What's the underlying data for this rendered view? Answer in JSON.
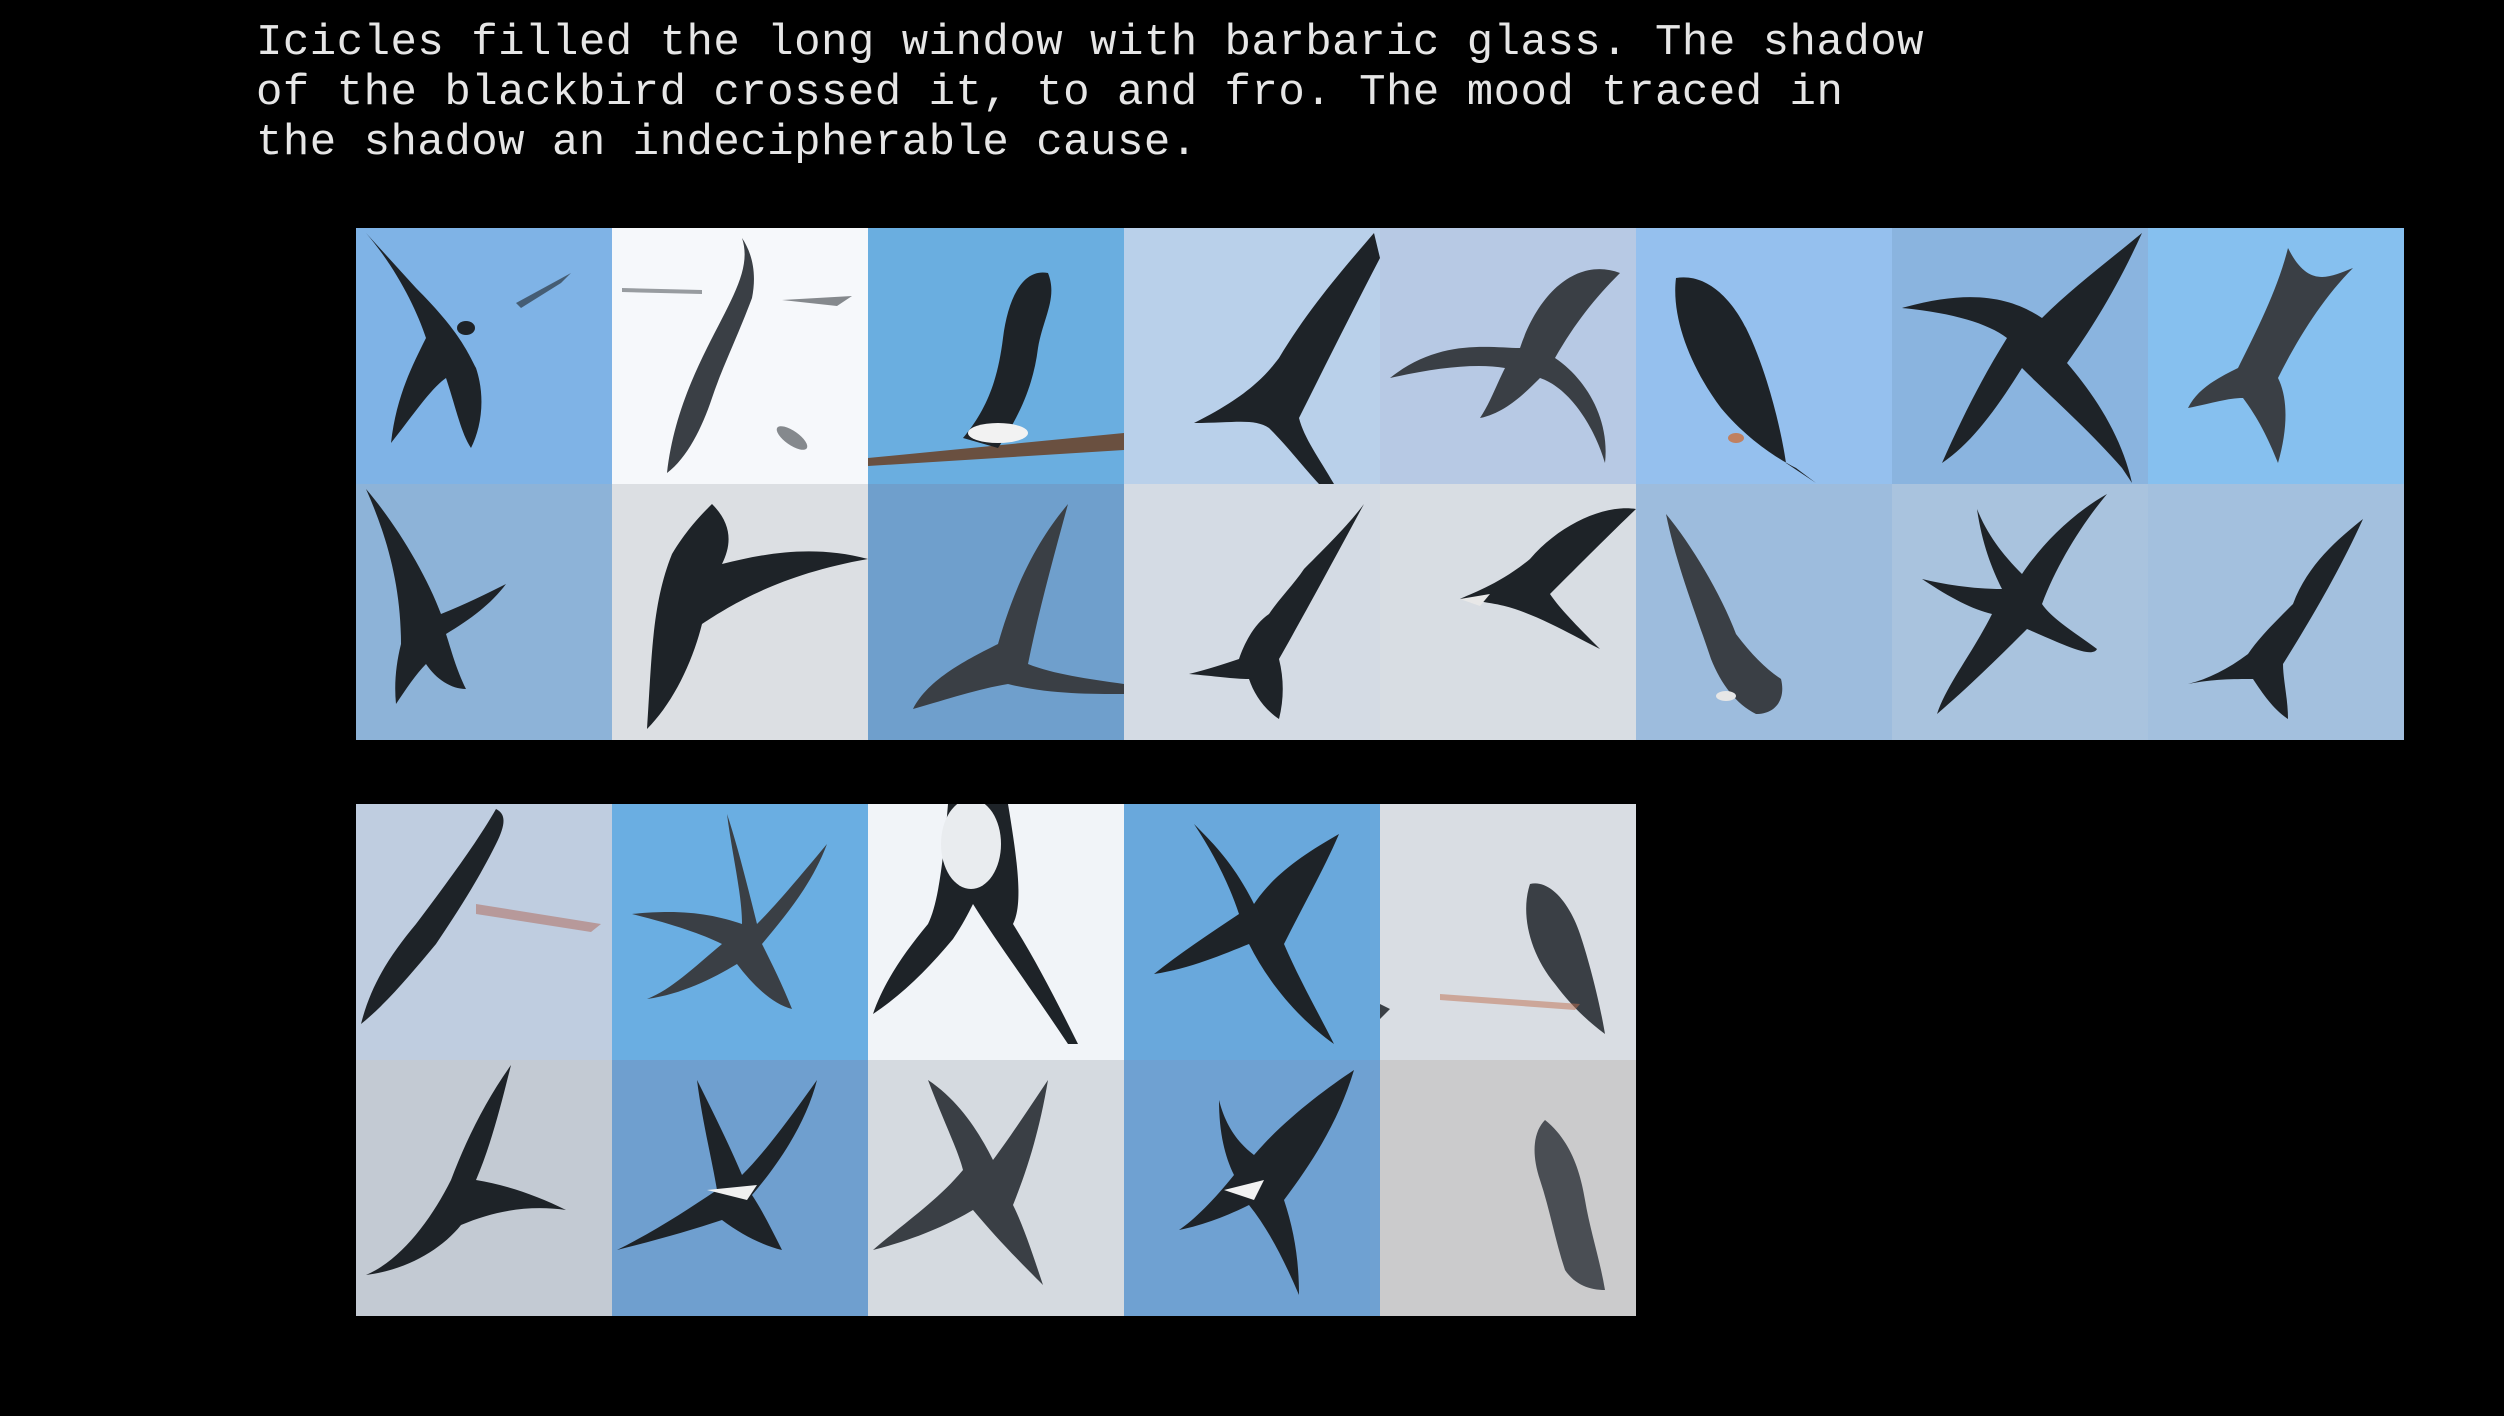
{
  "caption": {
    "lines": [
      "Icicles filled the long window with barbaric glass. The shadow",
      "of the blackbird crossed it, to and fro. The mood traced in",
      "the shadow an indecipherable cause."
    ]
  },
  "colors": {
    "background": "#000000",
    "caption_text": "#e6e6e6",
    "bird_dark": "#1e2328",
    "bird_mid": "#3a3f45"
  },
  "top_grid": {
    "tiles": [
      {
        "bg": "#7fb3e6",
        "subject": "bird-silhouette"
      },
      {
        "bg": "#f6f8fb",
        "subject": "bird-silhouette"
      },
      {
        "bg": "#6aaee0",
        "subject": "bird-on-branch"
      },
      {
        "bg": "#b9d0ea",
        "subject": "bird-silhouette"
      },
      {
        "bg": "#b7c9e4",
        "subject": "bird-silhouette"
      },
      {
        "bg": "#95c0ee",
        "subject": "bird-silhouette"
      },
      {
        "bg": "#8ab4df",
        "subject": "bird-silhouette"
      },
      {
        "bg": "#86c0ef",
        "subject": "bird-silhouette"
      },
      {
        "bg": "#8db3d8",
        "subject": "tern-in-flight"
      },
      {
        "bg": "#dcdfe3",
        "subject": "tern-in-flight"
      },
      {
        "bg": "#6f9fcc",
        "subject": "tern-in-flight"
      },
      {
        "bg": "#d4dbe4",
        "subject": "tern-in-flight"
      },
      {
        "bg": "#d8dde3",
        "subject": "tern-in-flight"
      },
      {
        "bg": "#9dbcdd",
        "subject": "tern-in-flight"
      },
      {
        "bg": "#a9c3de",
        "subject": "tern-in-flight"
      },
      {
        "bg": "#a3c0de",
        "subject": "tern-in-flight"
      }
    ]
  },
  "bottom_grid": {
    "tiles": [
      {
        "bg": "#bfcde0",
        "subject": "bird-silhouette"
      },
      {
        "bg": "#6aaee2",
        "subject": "bird-silhouette"
      },
      {
        "bg": "#f1f4f8",
        "subject": "bird-silhouette"
      },
      {
        "bg": "#69a8dc",
        "subject": "bird-silhouette"
      },
      {
        "bg": "#d9dde3",
        "subject": "bird-silhouette"
      },
      {
        "bg": "#c3cad3",
        "subject": "tern-in-flight"
      },
      {
        "bg": "#6f9fcf",
        "subject": "tern-in-flight"
      },
      {
        "bg": "#d5dae0",
        "subject": "tern-in-flight"
      },
      {
        "bg": "#6fa1d2",
        "subject": "tern-in-flight"
      },
      {
        "bg": "#cbcbcc",
        "subject": "tern-in-flight"
      }
    ]
  }
}
